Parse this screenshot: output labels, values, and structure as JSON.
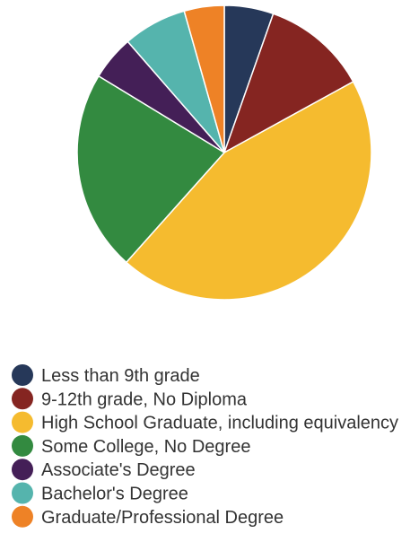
{
  "chart_data": {
    "type": "pie",
    "title": "",
    "categories": [
      "Less than 9th grade",
      "9-12th grade, No Diploma",
      "High School Graduate, including equivalency",
      "Some College, No Degree",
      "Associate's Degree",
      "Bachelor's Degree",
      "Graduate/Professional Degree"
    ],
    "values": [
      5.4,
      11.6,
      44.6,
      22.1,
      4.9,
      7.0,
      4.4
    ],
    "colors": [
      "#263859",
      "#852521",
      "#f5bb2f",
      "#338a40",
      "#441f57",
      "#55b4ad",
      "#ee8226"
    ],
    "legend_position": "bottom-left"
  }
}
